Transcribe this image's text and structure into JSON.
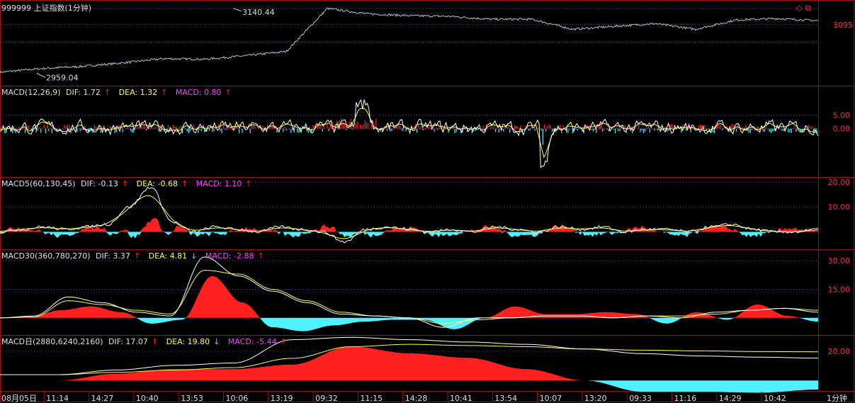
{
  "panels": [
    {
      "id": "price",
      "header": [
        {
          "text": "999999 上证指数(1分钟)",
          "color": "white"
        }
      ],
      "labels": [
        "3140.44",
        "2959.04"
      ],
      "ticks": [
        "3095"
      ]
    },
    {
      "id": "macd1",
      "name": "MACD(12,26,9)",
      "dif": "DIF: 1.72",
      "dif_dir": "up",
      "dea": "DEA: 1.32",
      "dea_dir": "up",
      "macd": "MACD: 0.80",
      "macd_dir": "up",
      "ticks": [
        "5.00",
        "0.00"
      ]
    },
    {
      "id": "macd5",
      "name": "MACD5(60,130,45)",
      "dif": "DIF: -0.13",
      "dif_dir": "up",
      "dea": "DEA: -0.68",
      "dea_dir": "up",
      "macd": "MACD: 1.10",
      "macd_dir": "up",
      "ticks": [
        "20.00",
        "10.00"
      ]
    },
    {
      "id": "macd30",
      "name": "MACD30(360,780,270)",
      "dif": "DIF: 3.37",
      "dif_dir": "up",
      "dea": "DEA: 4.81",
      "dea_dir": "down",
      "macd": "MACD: -2.88",
      "macd_dir": "up",
      "ticks": [
        "30.00",
        "15.00"
      ]
    },
    {
      "id": "macdday",
      "name": "MACD日(2880,6240,2160)",
      "dif": "DIF: 17.07",
      "dif_dir": "up",
      "dea": "DEA: 19.80",
      "dea_dir": "down",
      "macd": "MACD: -5.44",
      "macd_dir": "up",
      "ticks": [
        "20.00"
      ]
    }
  ],
  "x_axis": {
    "labels": [
      "08月05日",
      "11:14",
      "14:27",
      "10:40",
      "13:53",
      "10:06",
      "13:19",
      "09:32",
      "11:15",
      "14:28",
      "10:41",
      "13:54",
      "10:07",
      "13:20",
      "09:33",
      "11:16",
      "14:29",
      "10:42"
    ],
    "period": "1分钟"
  },
  "top_icons": [
    "◇",
    "⧉"
  ],
  "colors": {
    "background": "#000000",
    "frame": "#a01010",
    "up": "#ff2020",
    "down": "#50f0ff",
    "dif": "#ffffff",
    "dea": "#ffff40",
    "price_line": "#b0c0d0",
    "grid": "#5050a0"
  },
  "chart_data": [
    {
      "type": "line",
      "title": "999999 上证指数(1分钟)",
      "ylim": [
        2940,
        3150
      ],
      "annotations": [
        {
          "text": "3140.44",
          "value": 3140.44
        },
        {
          "text": "2959.04",
          "value": 2959.04
        }
      ],
      "series": [
        {
          "name": "上证指数",
          "x": [
            0,
            5,
            10,
            15,
            20,
            25,
            30,
            35,
            40,
            45,
            50,
            55,
            60,
            65,
            70,
            75,
            80,
            85,
            90,
            95,
            100
          ],
          "values": [
            2962,
            2972,
            2978,
            2988,
            3000,
            2998,
            3008,
            3020,
            3140,
            3125,
            3120,
            3118,
            3110,
            3110,
            3082,
            3090,
            3098,
            3082,
            3108,
            3112,
            3106
          ]
        }
      ]
    },
    {
      "type": "bar",
      "title": "MACD(12,26,9)",
      "ylim": [
        -18,
        16
      ],
      "series": [
        {
          "name": "DIF",
          "value": 1.72
        },
        {
          "name": "DEA",
          "value": 1.32
        },
        {
          "name": "MACD",
          "value": 0.8
        }
      ]
    },
    {
      "type": "area",
      "title": "MACD5(60,130,45)",
      "ylim": [
        -7,
        22
      ],
      "series": [
        {
          "name": "DIF",
          "value": -0.13
        },
        {
          "name": "DEA",
          "value": -0.68
        },
        {
          "name": "MACD",
          "value": 1.1
        }
      ]
    },
    {
      "type": "area",
      "title": "MACD30(360,780,270)",
      "ylim": [
        -9,
        36
      ],
      "series": [
        {
          "name": "DIF",
          "value": 3.37
        },
        {
          "name": "DEA",
          "value": 4.81
        },
        {
          "name": "MACD",
          "value": -2.88
        }
      ]
    },
    {
      "type": "area",
      "title": "MACD日(2880,6240,2160)",
      "ylim": [
        3,
        27
      ],
      "series": [
        {
          "name": "DIF",
          "value": 17.07
        },
        {
          "name": "DEA",
          "value": 19.8
        },
        {
          "name": "MACD",
          "value": -5.44
        }
      ]
    }
  ]
}
